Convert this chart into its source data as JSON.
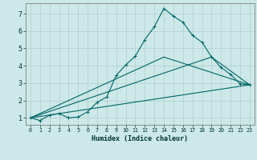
{
  "xlabel": "Humidex (Indice chaleur)",
  "ylabel": "",
  "xlim": [
    -0.5,
    23.5
  ],
  "ylim": [
    0.6,
    7.6
  ],
  "bg_color": "#cce8e8",
  "grid_color": "#b0cccc",
  "line_color": "#006666",
  "line1_x": [
    0,
    1,
    2,
    3,
    4,
    5,
    6,
    7,
    8,
    9,
    10,
    11,
    12,
    13,
    14,
    15,
    16,
    17,
    18,
    19,
    20,
    21,
    22,
    23
  ],
  "line1_y": [
    1.0,
    0.85,
    1.15,
    1.25,
    1.0,
    1.05,
    1.35,
    1.9,
    2.2,
    3.45,
    4.05,
    4.55,
    5.5,
    6.25,
    7.3,
    6.85,
    6.5,
    5.75,
    5.35,
    4.5,
    3.9,
    3.5,
    2.95,
    2.9
  ],
  "line2_x": [
    0,
    23
  ],
  "line2_y": [
    1.0,
    2.9
  ],
  "line3_x": [
    0,
    19,
    23
  ],
  "line3_y": [
    1.0,
    4.5,
    2.9
  ],
  "line4_x": [
    0,
    14,
    23
  ],
  "line4_y": [
    1.0,
    4.5,
    2.9
  ],
  "xticks": [
    0,
    1,
    2,
    3,
    4,
    5,
    6,
    7,
    8,
    9,
    10,
    11,
    12,
    13,
    14,
    15,
    16,
    17,
    18,
    19,
    20,
    21,
    22,
    23
  ],
  "yticks": [
    1,
    2,
    3,
    4,
    5,
    6,
    7
  ]
}
